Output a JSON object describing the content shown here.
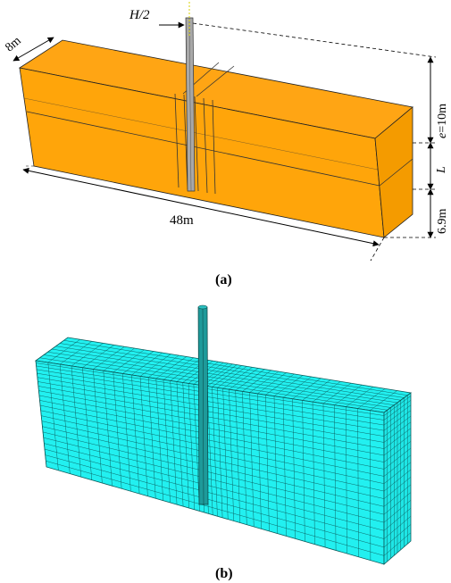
{
  "panel_a": {
    "label_width": "8m",
    "label_length": "48m",
    "label_pile_head": "H/2",
    "label_embed_e": "e",
    "label_embed_value": "=10m",
    "label_pile_L": "L",
    "label_bottom": "6.9m",
    "caption": "(a)",
    "colors": {
      "block_front": "#FFA50A",
      "block_top": "#FFA514",
      "block_side": "#F49B00",
      "pile": "#A8A8A8"
    }
  },
  "panel_b": {
    "caption": "(b)",
    "colors": {
      "mesh_fill": "#22F0F0",
      "mesh_line": "#0A5A5A",
      "pile": "#1E9A9A"
    }
  }
}
